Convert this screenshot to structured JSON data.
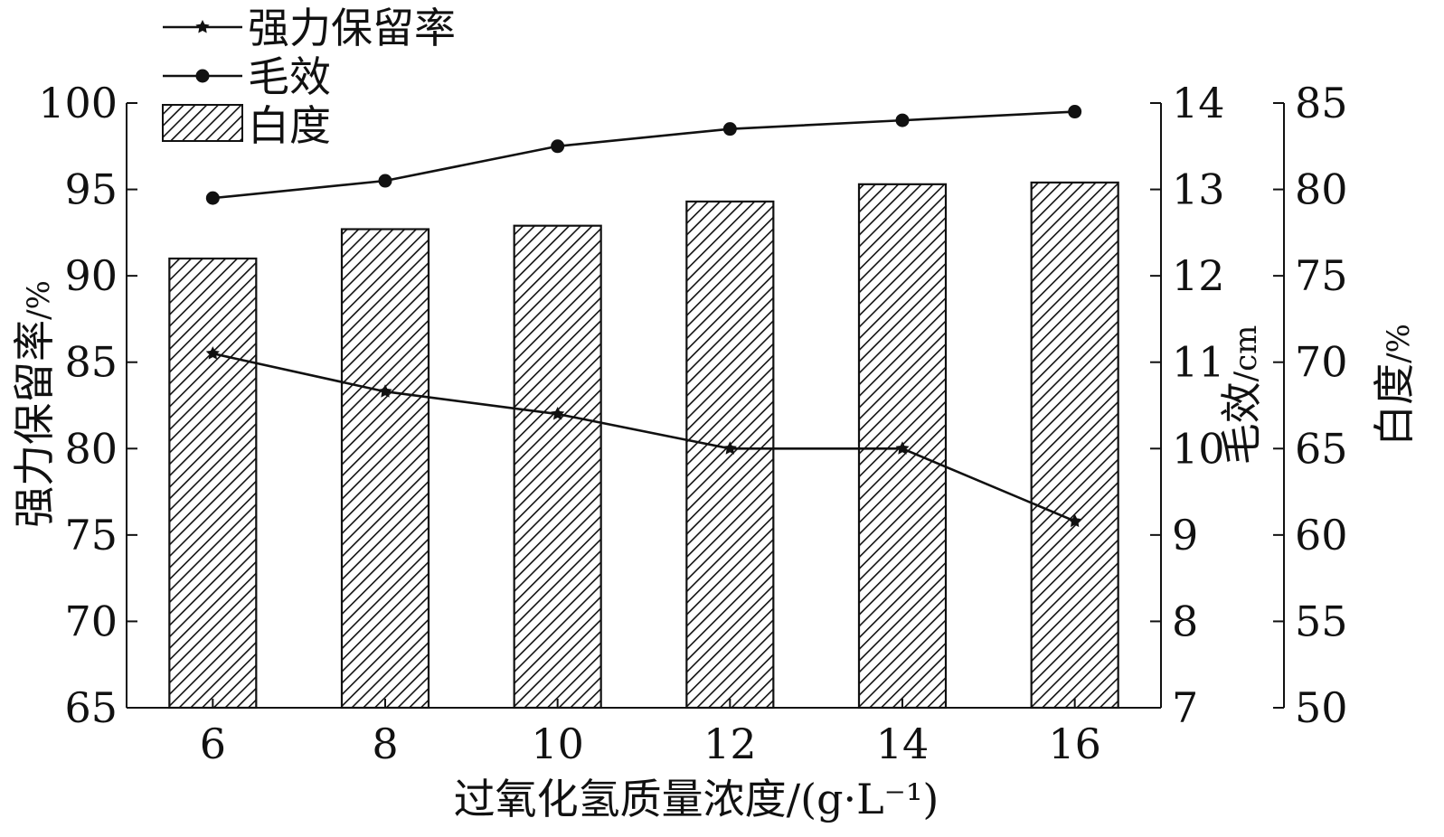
{
  "chart_data": {
    "type": "bar+line",
    "xlabel_cn": "过氧化氢质量浓度",
    "xlabel_unit": "/(g·L⁻¹)",
    "categories": [
      "6",
      "8",
      "10",
      "12",
      "14",
      "16"
    ],
    "axes": {
      "left": {
        "label": "强力保留率",
        "unit": "/%",
        "ylim": [
          65,
          100
        ],
        "ticks": [
          65,
          70,
          75,
          80,
          85,
          90,
          95,
          100
        ]
      },
      "right1": {
        "label": "毛效",
        "unit": "/cm",
        "ylim": [
          7,
          14
        ],
        "ticks": [
          7,
          8,
          9,
          10,
          11,
          12,
          13,
          14
        ]
      },
      "right2": {
        "label": "白度",
        "unit": "/%",
        "ylim": [
          50,
          85
        ],
        "ticks": [
          50,
          55,
          60,
          65,
          70,
          75,
          80,
          85
        ]
      }
    },
    "series": [
      {
        "name": "白度",
        "kind": "bar",
        "axis": "right2",
        "values": [
          76.0,
          77.7,
          77.9,
          79.3,
          80.3,
          80.4
        ]
      },
      {
        "name": "毛效",
        "kind": "line",
        "marker": "circle",
        "axis": "right1",
        "values": [
          12.9,
          13.1,
          13.5,
          13.7,
          13.8,
          13.9
        ]
      },
      {
        "name": "强力保留率",
        "kind": "line",
        "marker": "star",
        "axis": "left",
        "values": [
          85.5,
          83.3,
          82.0,
          80.0,
          80.0,
          75.8
        ]
      }
    ],
    "legend": [
      {
        "name": "强力保留率",
        "marker": "star-line"
      },
      {
        "name": "毛效",
        "marker": "circle-line"
      },
      {
        "name": "白度",
        "marker": "hatched-box"
      }
    ],
    "legend_position": "top-left",
    "colors": {
      "ink": "#111111",
      "bar_fill": "#ffffff",
      "hatch": "#111111"
    }
  }
}
